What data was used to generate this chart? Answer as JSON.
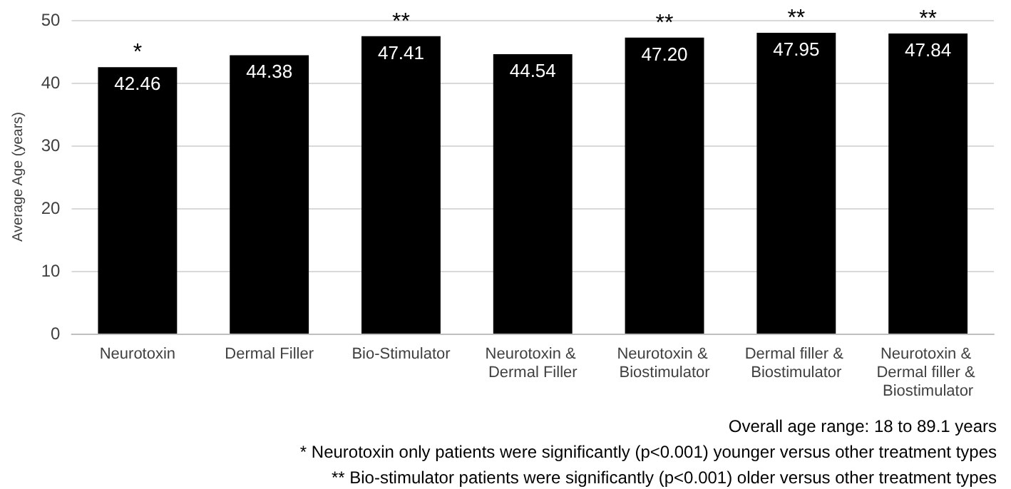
{
  "chart_data": {
    "type": "bar",
    "ylabel": "Average Age (years)",
    "categories": [
      "Neurotoxin",
      "Dermal Filler",
      "Bio-Stimulator",
      "Neurotoxin & Dermal Filler",
      "Neurotoxin & Biostimulator",
      "Dermal filler & Biostimulator",
      "Neurotoxin & Dermal filler & Biostimulator"
    ],
    "values": [
      42.46,
      44.38,
      47.41,
      44.54,
      47.2,
      47.95,
      47.84
    ],
    "value_labels": [
      "42.46",
      "44.38",
      "47.41",
      "44.54",
      "47.20",
      "47.95",
      "47.84"
    ],
    "color": "#000000",
    "ylim": [
      0,
      50
    ],
    "yticks": [
      0,
      10,
      20,
      30,
      40,
      50
    ],
    "grid": "y",
    "annotations": [
      {
        "text": "*",
        "x": "Neurotoxin",
        "y": 42.46
      },
      {
        "text": "**",
        "x": "Bio-Stimulator",
        "y": 47.41
      },
      {
        "text": "**",
        "x": "Neurotoxin & Biostimulator",
        "y": 47.2
      },
      {
        "text": "**",
        "x": "Dermal filler & Biostimulator",
        "y": 47.95
      },
      {
        "text": "**",
        "x": "Neurotoxin & Dermal filler & Biostimulator",
        "y": 47.84
      },
      "Overall age range: 18 to 89.1 years",
      "* Neurotoxin only patients were significantly (p<0.001) younger versus other treatment types",
      "** Bio-stimulator patients were significantly (p<0.001) older versus other treatment types"
    ]
  }
}
